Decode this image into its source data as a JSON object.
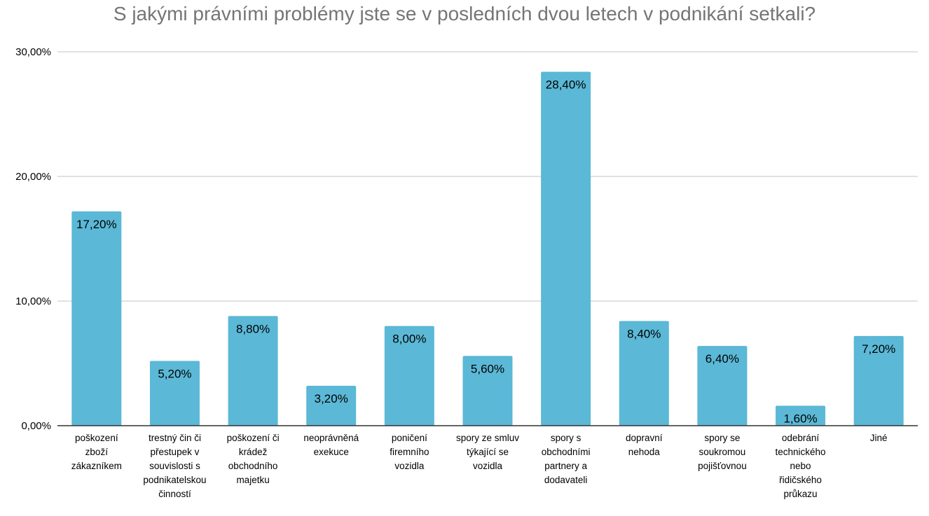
{
  "chart_data": {
    "type": "bar",
    "title": "S jakými právními problémy jste se v posledních dvou letech v podnikání setkali?",
    "xlabel": "",
    "ylabel": "",
    "ylim": [
      0,
      30
    ],
    "yticks": [
      "0,00%",
      "10,00%",
      "20,00%",
      "30,00%"
    ],
    "grid": true,
    "legend": "none",
    "bar_color": "#5bb8d6",
    "categories": [
      [
        "poškození",
        "zboží",
        "zákazníkem"
      ],
      [
        "trestný čin či",
        "přestupek v",
        "souvislosti s",
        "podnikatelskou",
        "činností"
      ],
      [
        "poškození či",
        "krádež",
        "obchodního",
        "majetku"
      ],
      [
        "neoprávněná",
        "exekuce"
      ],
      [
        "poničení",
        "firemního",
        "vozidla"
      ],
      [
        "spory ze smluv",
        "týkající se",
        "vozidla"
      ],
      [
        "spory s",
        "obchodními",
        "partnery a",
        "dodavateli"
      ],
      [
        "dopravní",
        "nehoda"
      ],
      [
        "spory se",
        "soukromou",
        "pojišťovnou"
      ],
      [
        "odebrání",
        "technického",
        "nebo",
        "řidičského",
        "průkazu"
      ],
      [
        "Jiné"
      ]
    ],
    "values": [
      17.2,
      5.2,
      8.8,
      3.2,
      8.0,
      5.6,
      28.4,
      8.4,
      6.4,
      1.6,
      7.2
    ],
    "data_labels": [
      "17,20%",
      "5,20%",
      "8,80%",
      "3,20%",
      "8,00%",
      "5,60%",
      "28,40%",
      "8,40%",
      "6,40%",
      "1,60%",
      "7,20%"
    ]
  }
}
